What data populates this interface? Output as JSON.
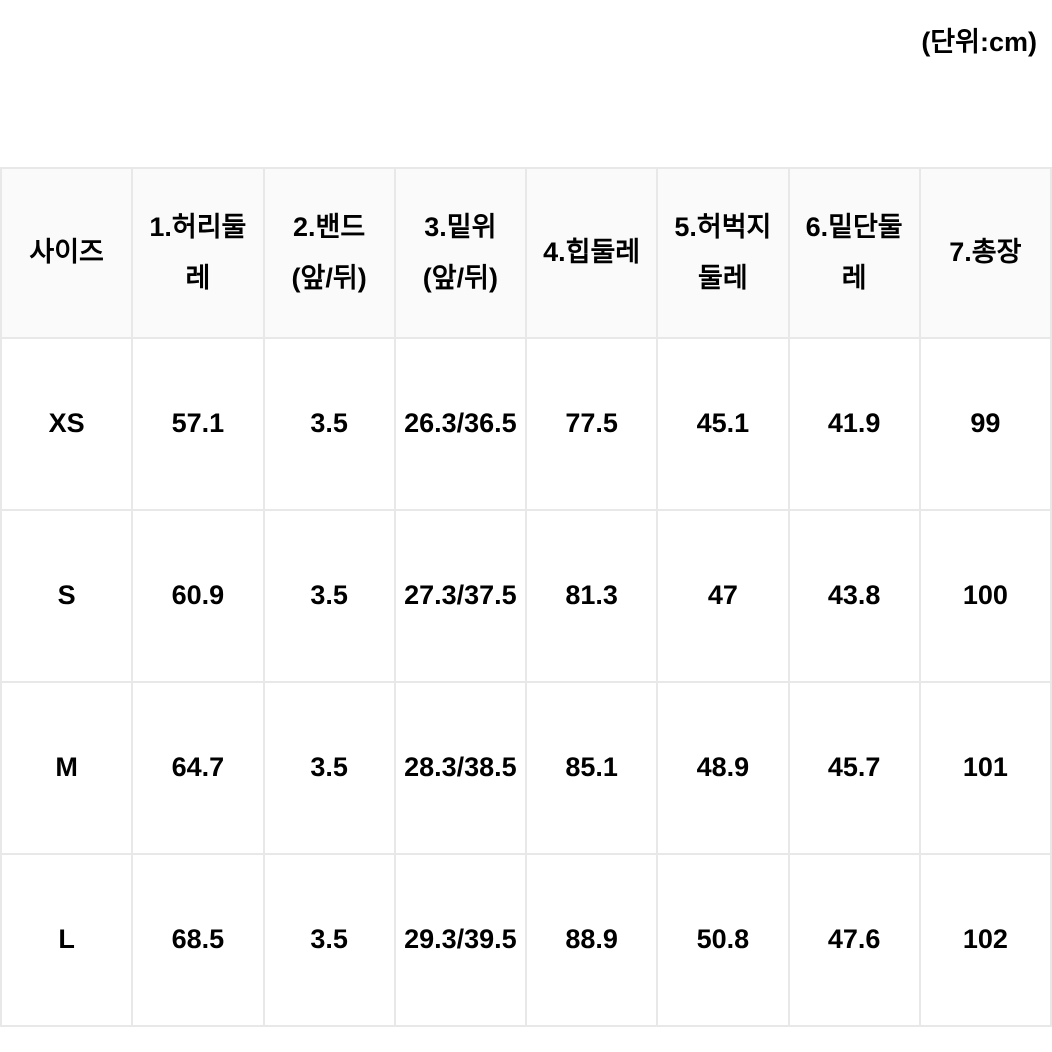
{
  "unit_label": "(단위:cm)",
  "table": {
    "columns": [
      "사이즈",
      "1.허리둘레",
      "2.밴드(앞/뒤)",
      "3.밑위(앞/뒤)",
      "4.힙둘레",
      "5.허벅지둘레",
      "6.밑단둘레",
      "7.총장"
    ],
    "rows": [
      [
        "XS",
        "57.1",
        "3.5",
        "26.3/36.5",
        "77.5",
        "45.1",
        "41.9",
        "99"
      ],
      [
        "S",
        "60.9",
        "3.5",
        "27.3/37.5",
        "81.3",
        "47",
        "43.8",
        "100"
      ],
      [
        "M",
        "64.7",
        "3.5",
        "28.3/38.5",
        "85.1",
        "48.9",
        "45.7",
        "101"
      ],
      [
        "L",
        "68.5",
        "3.5",
        "29.3/39.5",
        "88.9",
        "50.8",
        "47.6",
        "102"
      ]
    ],
    "header_bg": "#fafafa",
    "cell_bg": "#ffffff",
    "border_color": "#e8e8e8",
    "text_color": "#000000",
    "font_weight": 700,
    "header_fontsize": 27,
    "cell_fontsize": 27
  }
}
